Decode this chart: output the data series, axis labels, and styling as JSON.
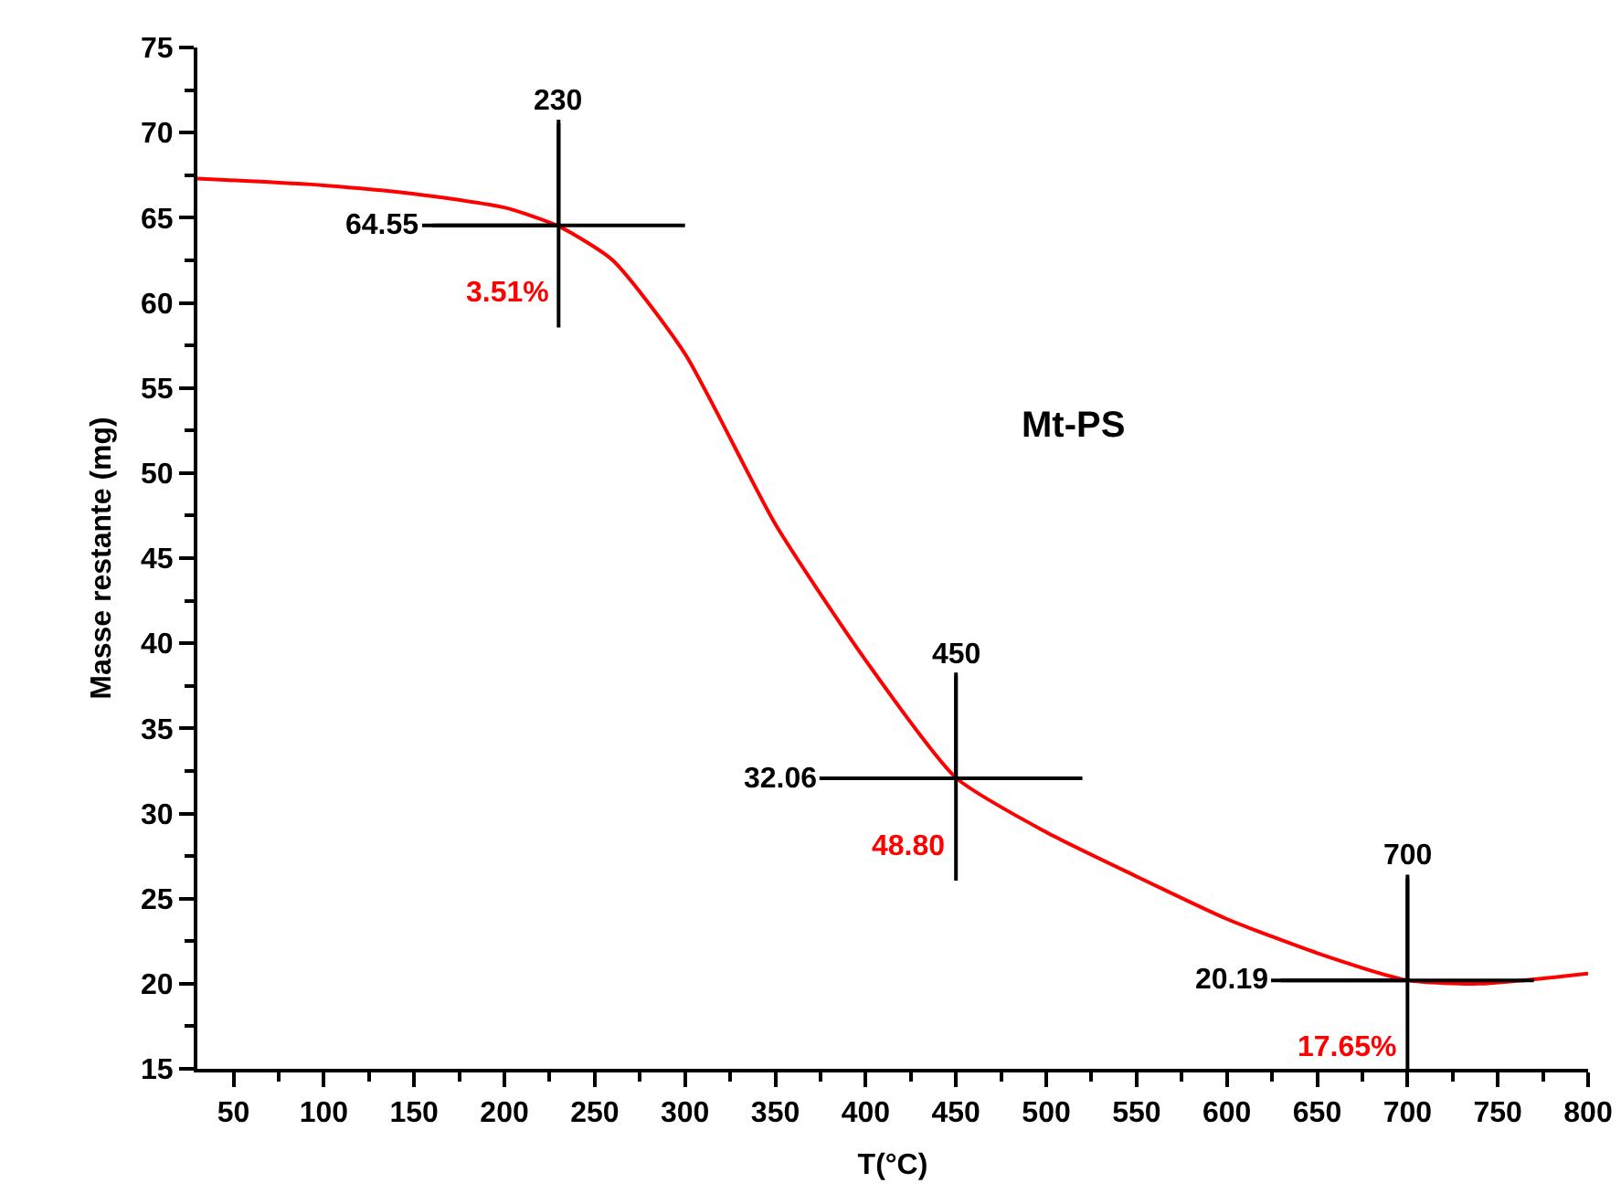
{
  "chart_data": {
    "type": "line",
    "xlabel": "T(°C)",
    "ylabel": "Masse restante (mg)",
    "x": [
      30,
      100,
      150,
      200,
      230,
      260,
      300,
      350,
      400,
      450,
      500,
      550,
      600,
      650,
      700,
      740,
      800
    ],
    "series": [
      {
        "name": "Mt-PS",
        "color": "#ff0000",
        "values": [
          67.3,
          66.9,
          66.4,
          65.6,
          64.5,
          62.5,
          57,
          47,
          39,
          32.1,
          28.9,
          26.3,
          23.8,
          21.8,
          20.2,
          20,
          20.6
        ]
      }
    ],
    "xlim": [
      30,
      800
    ],
    "xticks": [
      50,
      100,
      150,
      200,
      250,
      300,
      350,
      400,
      450,
      500,
      550,
      600,
      650,
      700,
      750,
      800
    ],
    "ylim": [
      15,
      75
    ],
    "yticks": [
      15,
      20,
      25,
      30,
      35,
      40,
      45,
      50,
      55,
      60,
      65,
      70,
      75
    ],
    "grid": false,
    "legend": false,
    "marker": "none",
    "line_style": "solid",
    "annotations": [
      {
        "text": "230",
        "x": 230,
        "y": 64.55
      },
      {
        "text": "64.55",
        "x": 230,
        "y": 64.55
      },
      {
        "text": "3.51%",
        "x": 230,
        "y": 64.55
      },
      {
        "text": "450",
        "x": 450,
        "y": 32.06
      },
      {
        "text": "32.06",
        "x": 450,
        "y": 32.06
      },
      {
        "text": "48.80",
        "x": 450,
        "y": 32.06
      },
      {
        "text": "700",
        "x": 700,
        "y": 20.19
      },
      {
        "text": "20.19",
        "x": 700,
        "y": 20.19
      },
      {
        "text": "17.65%",
        "x": 700,
        "y": 20.19
      }
    ]
  }
}
